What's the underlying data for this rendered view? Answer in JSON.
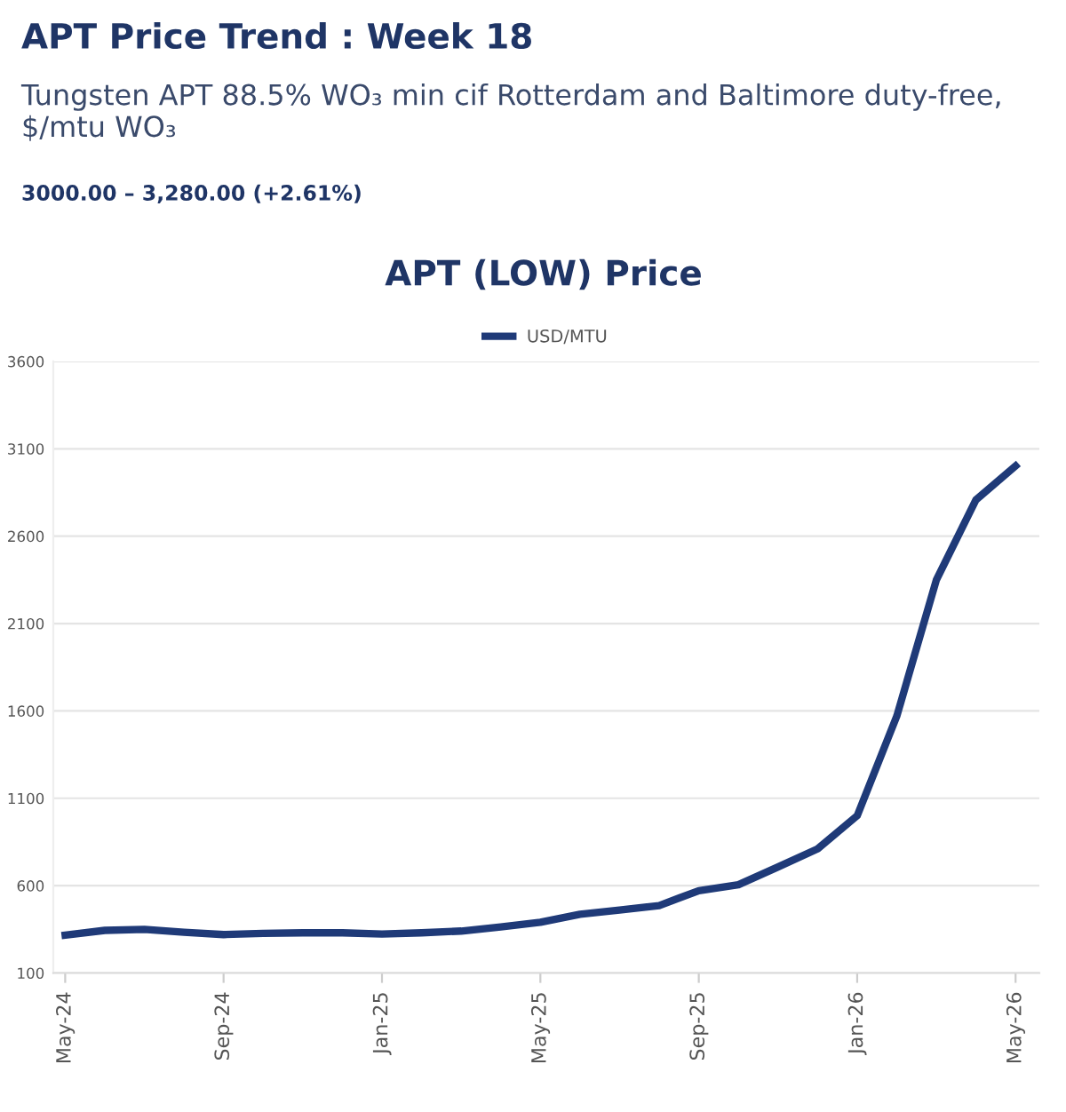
{
  "chart_data": {
    "type": "line",
    "title": "APT Price Trend : Week 18",
    "subtitle": "Tungsten APT 88.5% WO₃ min cif Rotterdam and Baltimore duty-free, $/mtu WO₃",
    "annotations": [
      "3000.00 – 3,280.00 (+2.61%)",
      "APT (LOW) Price"
    ],
    "categories": [
      "May-24",
      null,
      null,
      null,
      "Sep-24",
      null,
      null,
      null,
      "Jan-25",
      null,
      null,
      null,
      "May-25",
      null,
      null,
      null,
      "Sep-25",
      null,
      null,
      null,
      "Jan-26",
      null,
      null,
      null,
      "May-26"
    ],
    "series": [
      {
        "name": "USD/MTU",
        "color": "#1f3a78",
        "values": [
          317,
          344,
          350,
          333,
          320,
          327,
          330,
          330,
          323,
          330,
          340,
          364,
          390,
          436,
          460,
          486,
          571,
          605,
          707,
          810,
          1000,
          1570,
          2350,
          2808,
          3002
        ]
      }
    ],
    "ylim": [
      100,
      3600
    ],
    "yticks": [
      100,
      600,
      1100,
      1600,
      2100,
      2600,
      3100,
      3600
    ],
    "grid": "y",
    "legend": "top",
    "marker": "none",
    "line_style": "solid"
  }
}
